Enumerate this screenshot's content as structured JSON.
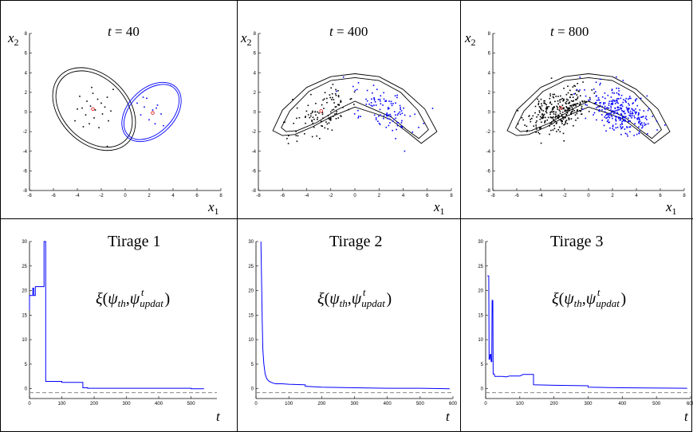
{
  "chart_data": [
    {
      "type": "scatter",
      "title": "t = 40",
      "title_var": "t",
      "title_value": "= 40",
      "xlabel": "x",
      "xlabel_sub": "1",
      "ylabel": "x",
      "ylabel_sub": "2",
      "xlim": [
        -8,
        8
      ],
      "ylim": [
        -8,
        8
      ],
      "xticks": [
        -8,
        -6,
        -4,
        -2,
        0,
        2,
        4,
        6,
        8
      ],
      "yticks": [
        -8,
        -6,
        -4,
        -2,
        0,
        2,
        4,
        6,
        8
      ],
      "grid": false,
      "series": [
        {
          "color": "#000000",
          "values": [
            [
              -4.2,
              -0.9
            ],
            [
              -3.8,
              1.6
            ],
            [
              -3.6,
              0.4
            ],
            [
              -3.3,
              -0.3
            ],
            [
              -3.2,
              1.1
            ],
            [
              -3.0,
              -1.2
            ],
            [
              -2.9,
              0.6
            ],
            [
              -2.7,
              1.9
            ],
            [
              -2.6,
              -0.6
            ],
            [
              -2.5,
              0.2
            ],
            [
              -2.3,
              1.3
            ],
            [
              -2.2,
              -1.6
            ],
            [
              -2.0,
              0.9
            ],
            [
              -1.9,
              -0.2
            ],
            [
              -1.7,
              0.5
            ],
            [
              -1.5,
              1.5
            ],
            [
              -1.4,
              -0.9
            ],
            [
              -1.2,
              0.1
            ],
            [
              -3.5,
              -1.5
            ],
            [
              -2.8,
              2.5
            ],
            [
              -1.0,
              2.3
            ],
            [
              -4.0,
              0.3
            ],
            [
              -1.5,
              -3.5
            ]
          ]
        },
        {
          "color": "#0000ff",
          "values": [
            [
              1.0,
              0.9
            ],
            [
              1.3,
              -0.3
            ],
            [
              1.6,
              0.5
            ],
            [
              1.8,
              1.4
            ],
            [
              2.0,
              -0.8
            ],
            [
              2.3,
              0.2
            ],
            [
              2.5,
              -1.2
            ],
            [
              2.7,
              0.7
            ],
            [
              3.0,
              -0.2
            ],
            [
              3.2,
              -1.4
            ],
            [
              1.5,
              1.5
            ],
            [
              2.6,
              0.4
            ]
          ]
        }
      ],
      "highlights": [
        [
          -2.7,
          0.3
        ],
        [
          2.3,
          -0.1
        ]
      ],
      "ellipses": [
        {
          "color": "#000000",
          "cx": -2.6,
          "cy": 0.3,
          "rx": 2.6,
          "ry": 4.5,
          "angle": -45
        },
        {
          "color": "#000000",
          "cx": -2.6,
          "cy": 0.3,
          "rx": 2.85,
          "ry": 4.85,
          "angle": -45
        },
        {
          "color": "#0000ff",
          "cx": 2.2,
          "cy": 0.0,
          "rx": 1.75,
          "ry": 3.35,
          "angle": 45
        },
        {
          "color": "#0000ff",
          "cx": 2.2,
          "cy": 0.0,
          "rx": 1.95,
          "ry": 3.55,
          "angle": 45
        }
      ]
    },
    {
      "type": "scatter",
      "title": "t = 400",
      "title_var": "t",
      "title_value": "= 400",
      "xlabel": "x",
      "xlabel_sub": "1",
      "ylabel": "x",
      "ylabel_sub": "2",
      "xlim": [
        -8,
        8
      ],
      "ylim": [
        -8,
        8
      ],
      "xticks": [
        -8,
        -6,
        -4,
        -2,
        0,
        2,
        4,
        6,
        8
      ],
      "yticks": [
        -8,
        -6,
        -4,
        -2,
        0,
        2,
        4,
        6,
        8
      ],
      "grid": false,
      "points_per_cluster": 110,
      "clusters": [
        {
          "color": "#000000",
          "mean": [
            -2.6,
            0.0
          ],
          "sd": [
            1.35,
            1.25
          ],
          "tilt": 0.45
        },
        {
          "color": "#0000ff",
          "mean": [
            2.5,
            0.3
          ],
          "sd": [
            1.3,
            1.2
          ],
          "tilt": -0.45
        }
      ],
      "highlights": [
        [
          -2.8,
          0.1
        ]
      ],
      "chevrons": [
        {
          "color": "#000000",
          "points": [
            [
              -6.8,
              -1.9
            ],
            [
              -6.0,
              0.2
            ],
            [
              -4.0,
              2.5
            ],
            [
              -2.0,
              3.6
            ],
            [
              0.0,
              3.9
            ],
            [
              2.0,
              3.6
            ],
            [
              4.0,
              2.3
            ],
            [
              5.8,
              0.3
            ],
            [
              6.8,
              -2.0
            ],
            [
              5.5,
              -3.2
            ],
            [
              4.5,
              -2.2
            ],
            [
              3.0,
              -0.8
            ],
            [
              1.8,
              -0.2
            ],
            [
              0.0,
              0.5
            ],
            [
              -2.0,
              -0.5
            ],
            [
              -3.5,
              -1.5
            ],
            [
              -5.0,
              -2.3
            ],
            [
              -6.0,
              -2.4
            ]
          ]
        },
        {
          "color": "#000000",
          "points": [
            [
              -6.1,
              -1.6
            ],
            [
              -5.4,
              0.1
            ],
            [
              -3.8,
              2.1
            ],
            [
              -2.0,
              3.2
            ],
            [
              0.0,
              3.5
            ],
            [
              2.0,
              3.2
            ],
            [
              3.8,
              2.0
            ],
            [
              5.2,
              0.2
            ],
            [
              6.1,
              -1.8
            ],
            [
              5.3,
              -2.7
            ],
            [
              4.3,
              -1.8
            ],
            [
              3.0,
              -0.5
            ],
            [
              1.5,
              0.3
            ],
            [
              0.0,
              1.1
            ],
            [
              -1.5,
              0.2
            ],
            [
              -3.2,
              -1.1
            ],
            [
              -4.8,
              -1.9
            ],
            [
              -5.7,
              -2.0
            ]
          ]
        }
      ]
    },
    {
      "type": "scatter",
      "title": "t = 800",
      "title_var": "t",
      "title_value": "= 800",
      "xlabel": "x",
      "xlabel_sub": "1",
      "ylabel": "x",
      "ylabel_sub": "2",
      "xlim": [
        -8,
        8
      ],
      "ylim": [
        -8,
        8
      ],
      "xticks": [
        -8,
        -6,
        -4,
        -2,
        0,
        2,
        4,
        6,
        8
      ],
      "yticks": [
        -8,
        -6,
        -4,
        -2,
        0,
        2,
        4,
        6,
        8
      ],
      "grid": false,
      "points_per_cluster": 300,
      "clusters": [
        {
          "color": "#000000",
          "mean": [
            -2.4,
            0.2
          ],
          "sd": [
            1.3,
            1.2
          ],
          "tilt": 0.45
        },
        {
          "color": "#0000ff",
          "mean": [
            2.6,
            0.1
          ],
          "sd": [
            1.3,
            1.2
          ],
          "tilt": -0.45
        }
      ],
      "highlights": [
        [
          -2.3,
          0.4
        ]
      ],
      "chevrons": [
        {
          "color": "#000000",
          "points": [
            [
              -6.8,
              -1.9
            ],
            [
              -6.0,
              0.2
            ],
            [
              -4.0,
              2.5
            ],
            [
              -2.0,
              3.6
            ],
            [
              0.0,
              3.9
            ],
            [
              2.0,
              3.6
            ],
            [
              4.0,
              2.3
            ],
            [
              5.8,
              0.3
            ],
            [
              6.8,
              -2.0
            ],
            [
              5.5,
              -3.2
            ],
            [
              4.5,
              -2.2
            ],
            [
              3.0,
              -0.8
            ],
            [
              1.8,
              -0.2
            ],
            [
              0.0,
              0.5
            ],
            [
              -2.0,
              -0.5
            ],
            [
              -3.5,
              -1.5
            ],
            [
              -5.0,
              -2.3
            ],
            [
              -6.0,
              -2.4
            ]
          ]
        },
        {
          "color": "#000000",
          "points": [
            [
              -6.1,
              -1.6
            ],
            [
              -5.4,
              0.1
            ],
            [
              -3.8,
              2.1
            ],
            [
              -2.0,
              3.2
            ],
            [
              0.0,
              3.5
            ],
            [
              2.0,
              3.2
            ],
            [
              3.8,
              2.0
            ],
            [
              5.2,
              0.2
            ],
            [
              6.1,
              -1.8
            ],
            [
              5.3,
              -2.7
            ],
            [
              4.3,
              -1.8
            ],
            [
              3.0,
              -0.5
            ],
            [
              1.5,
              0.3
            ],
            [
              0.0,
              1.1
            ],
            [
              -1.5,
              0.2
            ],
            [
              -3.2,
              -1.1
            ],
            [
              -4.8,
              -1.9
            ],
            [
              -5.7,
              -2.0
            ]
          ]
        }
      ]
    },
    {
      "type": "line",
      "title": "Tirage 1",
      "annotation": {
        "xi": "ξ",
        "lpar": "(",
        "psi": "ψ",
        "th": "th",
        "comma": ",",
        "upd": "updat",
        "sup": "t",
        "rpar": ")"
      },
      "xlabel": "t",
      "xlim": [
        0,
        580
      ],
      "ylim": [
        -2,
        30
      ],
      "xticks": [
        0,
        100,
        200,
        300,
        400,
        500
      ],
      "yticks": [
        0,
        5,
        10,
        15,
        20,
        25,
        30
      ],
      "reference_line": {
        "y": -0.8,
        "style": "dashed",
        "color": "#888888"
      },
      "series": [
        {
          "color": "#0000ff",
          "x": [
            0,
            0,
            10,
            10,
            13,
            13,
            18,
            18,
            45,
            45,
            50,
            50,
            100,
            100,
            165,
            165,
            180,
            180,
            500,
            500,
            540
          ],
          "y": [
            16,
            19,
            19,
            20.5,
            20.5,
            19,
            19,
            20.8,
            20.8,
            30,
            30,
            1.5,
            1.5,
            1.3,
            1.3,
            0.2,
            0.2,
            0.1,
            0.1,
            0,
            0
          ]
        }
      ]
    },
    {
      "type": "line",
      "title": "Tirage 2",
      "annotation": {
        "xi": "ξ",
        "lpar": "(",
        "psi": "ψ",
        "th": "th",
        "comma": ",",
        "upd": "updat",
        "sup": "t",
        "rpar": ")"
      },
      "xlabel": "t",
      "xlim": [
        0,
        600
      ],
      "ylim": [
        -2,
        30
      ],
      "xticks": [
        0,
        100,
        200,
        300,
        400,
        500,
        600
      ],
      "yticks": [
        0,
        5,
        10,
        15,
        20,
        25,
        30
      ],
      "reference_line": {
        "y": -0.8,
        "style": "dashed",
        "color": "#888888"
      },
      "series": [
        {
          "color": "#0000ff",
          "x": [
            15,
            17,
            19,
            21,
            24,
            28,
            33,
            40,
            50,
            60,
            80,
            100,
            150,
            150,
            200,
            300,
            400,
            500,
            590
          ],
          "y": [
            30,
            22,
            14,
            8,
            5,
            3,
            2,
            1.5,
            1.2,
            1.0,
            1.0,
            0.9,
            0.8,
            0.5,
            0.3,
            0.2,
            0.1,
            0.1,
            0
          ]
        }
      ]
    },
    {
      "type": "line",
      "title": "Tirage 3",
      "annotation": {
        "xi": "ξ",
        "lpar": "(",
        "psi": "ψ",
        "th": "th",
        "comma": ",",
        "upd": "updat",
        "sup": "t",
        "rpar": ")"
      },
      "xlabel": "t",
      "xlim": [
        0,
        600
      ],
      "ylim": [
        -2,
        30
      ],
      "xticks": [
        0,
        100,
        200,
        300,
        400,
        500,
        600
      ],
      "yticks": [
        0,
        5,
        10,
        15,
        20,
        25,
        30
      ],
      "reference_line": {
        "y": -0.8,
        "style": "dashed",
        "color": "#888888"
      },
      "series": [
        {
          "color": "#0000ff",
          "x": [
            5,
            9,
            10,
            12,
            13,
            15,
            16,
            18,
            19,
            21,
            22,
            25,
            27,
            35,
            50,
            60,
            70,
            100,
            110,
            140,
            140,
            200,
            300,
            300,
            400,
            590
          ],
          "y": [
            23,
            23,
            6,
            6,
            7,
            7,
            5.5,
            5.5,
            18,
            18,
            3,
            3,
            2.5,
            2.5,
            2.5,
            2.4,
            2.6,
            2.6,
            2.9,
            2.9,
            0.8,
            0.7,
            0.6,
            0.3,
            0.2,
            0.1
          ]
        }
      ]
    }
  ]
}
